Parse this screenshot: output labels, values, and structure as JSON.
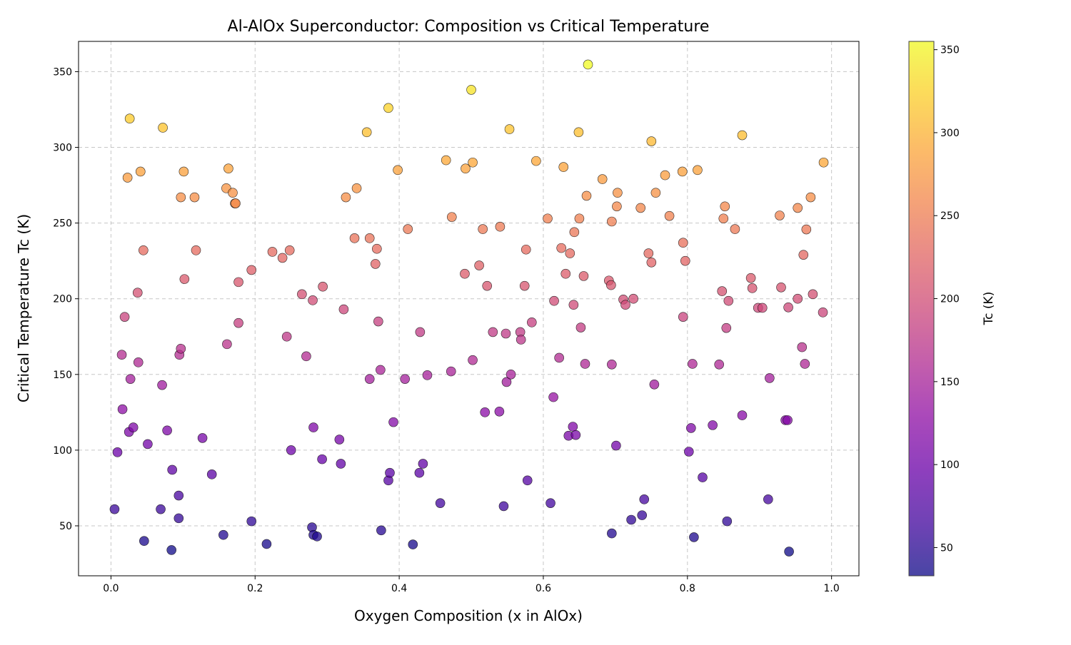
{
  "chart_data": {
    "type": "scatter",
    "title": "Al-AlOx Superconductor: Composition vs Critical Temperature",
    "xlabel": "Oxygen Composition (x in AlOx)",
    "ylabel": "Critical Temperature Tc (K)",
    "xlim": [
      -0.045,
      1.038
    ],
    "ylim": [
      17,
      370
    ],
    "xticks": [
      "0.0",
      "0.2",
      "0.4",
      "0.6",
      "0.8",
      "1.0"
    ],
    "yticks": [
      "50",
      "100",
      "150",
      "200",
      "250",
      "300",
      "350"
    ],
    "grid": true,
    "colormap": "plasma",
    "color_by": "y",
    "colorbar": {
      "label": "Tc (K)",
      "range": [
        33,
        355
      ],
      "ticks": [
        "50",
        "100",
        "150",
        "200",
        "250",
        "300",
        "350"
      ]
    },
    "marker_edge_color": "#000000",
    "points": [
      [
        0.005,
        61
      ],
      [
        0.009,
        98.6
      ],
      [
        0.015,
        163
      ],
      [
        0.016,
        127
      ],
      [
        0.019,
        188
      ],
      [
        0.023,
        280
      ],
      [
        0.025,
        112
      ],
      [
        0.026,
        319
      ],
      [
        0.027,
        147
      ],
      [
        0.031,
        115
      ],
      [
        0.037,
        204
      ],
      [
        0.038,
        158
      ],
      [
        0.041,
        284
      ],
      [
        0.045,
        232
      ],
      [
        0.046,
        40
      ],
      [
        0.051,
        104
      ],
      [
        0.069,
        61
      ],
      [
        0.071,
        143
      ],
      [
        0.072,
        313
      ],
      [
        0.078,
        113
      ],
      [
        0.084,
        34
      ],
      [
        0.085,
        87
      ],
      [
        0.094,
        70
      ],
      [
        0.094,
        55
      ],
      [
        0.095,
        163
      ],
      [
        0.097,
        267
      ],
      [
        0.097,
        167
      ],
      [
        0.101,
        284
      ],
      [
        0.102,
        213
      ],
      [
        0.116,
        267
      ],
      [
        0.118,
        232
      ],
      [
        0.127,
        108
      ],
      [
        0.14,
        84
      ],
      [
        0.156,
        44
      ],
      [
        0.16,
        273
      ],
      [
        0.161,
        170
      ],
      [
        0.163,
        286
      ],
      [
        0.169,
        270
      ],
      [
        0.172,
        263
      ],
      [
        0.173,
        263
      ],
      [
        0.177,
        211
      ],
      [
        0.177,
        184
      ],
      [
        0.195,
        53
      ],
      [
        0.195,
        219
      ],
      [
        0.216,
        38
      ],
      [
        0.224,
        231
      ],
      [
        0.238,
        227
      ],
      [
        0.244,
        175
      ],
      [
        0.248,
        232
      ],
      [
        0.25,
        100
      ],
      [
        0.265,
        203
      ],
      [
        0.271,
        162
      ],
      [
        0.279,
        49
      ],
      [
        0.28,
        199
      ],
      [
        0.281,
        115
      ],
      [
        0.281,
        44
      ],
      [
        0.286,
        43
      ],
      [
        0.293,
        94
      ],
      [
        0.294,
        208
      ],
      [
        0.317,
        107
      ],
      [
        0.319,
        91
      ],
      [
        0.323,
        193
      ],
      [
        0.326,
        267
      ],
      [
        0.338,
        240
      ],
      [
        0.341,
        273
      ],
      [
        0.355,
        310
      ],
      [
        0.359,
        147
      ],
      [
        0.359,
        240
      ],
      [
        0.367,
        223
      ],
      [
        0.369,
        233
      ],
      [
        0.371,
        185
      ],
      [
        0.374,
        153
      ],
      [
        0.375,
        47
      ],
      [
        0.385,
        80
      ],
      [
        0.385,
        326
      ],
      [
        0.387,
        85
      ],
      [
        0.392,
        118.5
      ],
      [
        0.398,
        285
      ],
      [
        0.408,
        147
      ],
      [
        0.412,
        246
      ],
      [
        0.419,
        37.7
      ],
      [
        0.428,
        85
      ],
      [
        0.429,
        178
      ],
      [
        0.433,
        91
      ],
      [
        0.439,
        149.5
      ],
      [
        0.457,
        65
      ],
      [
        0.465,
        291.5
      ],
      [
        0.472,
        152
      ],
      [
        0.473,
        254
      ],
      [
        0.491,
        216.5
      ],
      [
        0.492,
        286
      ],
      [
        0.5,
        338
      ],
      [
        0.502,
        159.5
      ],
      [
        0.502,
        290
      ],
      [
        0.511,
        222
      ],
      [
        0.516,
        246
      ],
      [
        0.519,
        125
      ],
      [
        0.522,
        208.5
      ],
      [
        0.53,
        178
      ],
      [
        0.539,
        125.5
      ],
      [
        0.54,
        247.6
      ],
      [
        0.545,
        63
      ],
      [
        0.548,
        177
      ],
      [
        0.549,
        145
      ],
      [
        0.553,
        312
      ],
      [
        0.555,
        150
      ],
      [
        0.568,
        178
      ],
      [
        0.569,
        173
      ],
      [
        0.574,
        208.5
      ],
      [
        0.576,
        232.5
      ],
      [
        0.578,
        80
      ],
      [
        0.584,
        184.4
      ],
      [
        0.59,
        291
      ],
      [
        0.606,
        253
      ],
      [
        0.61,
        65
      ],
      [
        0.614,
        135
      ],
      [
        0.615,
        198.6
      ],
      [
        0.622,
        161
      ],
      [
        0.625,
        233.5
      ],
      [
        0.628,
        287
      ],
      [
        0.631,
        216.5
      ],
      [
        0.635,
        109.5
      ],
      [
        0.637,
        230
      ],
      [
        0.641,
        115.5
      ],
      [
        0.642,
        196
      ],
      [
        0.643,
        244
      ],
      [
        0.645,
        110
      ],
      [
        0.649,
        310
      ],
      [
        0.65,
        253
      ],
      [
        0.652,
        181
      ],
      [
        0.656,
        215
      ],
      [
        0.658,
        157
      ],
      [
        0.66,
        268
      ],
      [
        0.662,
        354.7
      ],
      [
        0.682,
        279
      ],
      [
        0.691,
        212
      ],
      [
        0.695,
        45
      ],
      [
        0.695,
        156.6
      ],
      [
        0.695,
        251
      ],
      [
        0.694,
        209
      ],
      [
        0.701,
        103
      ],
      [
        0.702,
        261
      ],
      [
        0.703,
        270
      ],
      [
        0.711,
        199.5
      ],
      [
        0.714,
        196
      ],
      [
        0.722,
        54
      ],
      [
        0.725,
        200
      ],
      [
        0.735,
        260
      ],
      [
        0.737,
        57
      ],
      [
        0.74,
        67.5
      ],
      [
        0.746,
        230
      ],
      [
        0.75,
        304
      ],
      [
        0.75,
        224
      ],
      [
        0.754,
        143.4
      ],
      [
        0.756,
        270
      ],
      [
        0.769,
        281.6
      ],
      [
        0.775,
        254.7
      ],
      [
        0.793,
        284
      ],
      [
        0.794,
        237
      ],
      [
        0.794,
        188
      ],
      [
        0.797,
        225
      ],
      [
        0.802,
        99
      ],
      [
        0.805,
        114.6
      ],
      [
        0.807,
        157
      ],
      [
        0.809,
        42.5
      ],
      [
        0.814,
        285
      ],
      [
        0.821,
        82
      ],
      [
        0.835,
        116.5
      ],
      [
        0.844,
        156.6
      ],
      [
        0.848,
        205
      ],
      [
        0.85,
        253
      ],
      [
        0.852,
        261
      ],
      [
        0.854,
        180.7
      ],
      [
        0.855,
        53
      ],
      [
        0.857,
        198.6
      ],
      [
        0.866,
        246
      ],
      [
        0.876,
        123
      ],
      [
        0.876,
        308
      ],
      [
        0.888,
        213.7
      ],
      [
        0.89,
        207
      ],
      [
        0.898,
        194
      ],
      [
        0.904,
        194
      ],
      [
        0.912,
        67.5
      ],
      [
        0.914,
        147.6
      ],
      [
        0.928,
        255
      ],
      [
        0.93,
        207.5
      ],
      [
        0.936,
        119.8
      ],
      [
        0.939,
        119.8
      ],
      [
        0.94,
        194.3
      ],
      [
        0.941,
        33
      ],
      [
        0.953,
        260
      ],
      [
        0.953,
        200
      ],
      [
        0.959,
        168
      ],
      [
        0.961,
        229
      ],
      [
        0.963,
        157
      ],
      [
        0.965,
        245.8
      ],
      [
        0.971,
        267
      ],
      [
        0.974,
        203
      ],
      [
        0.988,
        191
      ],
      [
        0.989,
        290
      ]
    ]
  }
}
